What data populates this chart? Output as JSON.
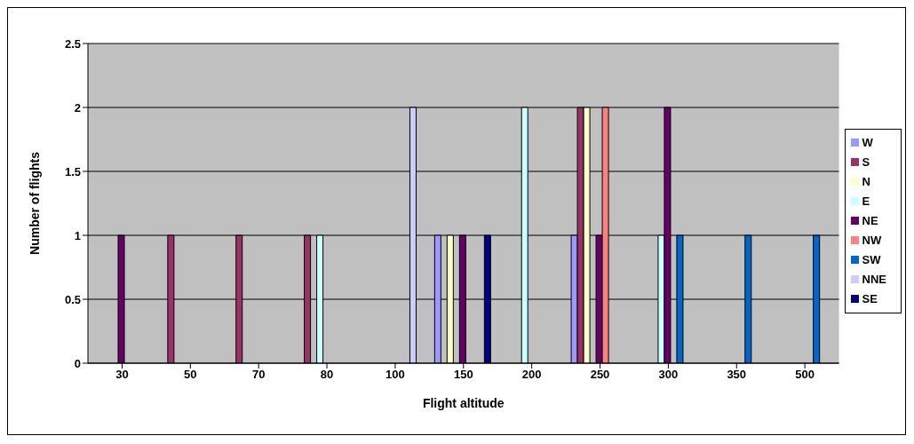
{
  "chart_data": {
    "type": "bar",
    "xlabel": "Flight altitude",
    "ylabel": "Number of flights",
    "categories": [
      "30",
      "50",
      "70",
      "80",
      "100",
      "150",
      "200",
      "250",
      "300",
      "350",
      "500"
    ],
    "series": [
      {
        "name": "W",
        "color": "#9999ff",
        "values": [
          0,
          0,
          0,
          0,
          0,
          1,
          0,
          1,
          0,
          0,
          0
        ]
      },
      {
        "name": "S",
        "color": "#993366",
        "values": [
          0,
          1,
          1,
          1,
          0,
          0,
          0,
          2,
          0,
          0,
          0
        ]
      },
      {
        "name": "N",
        "color": "#ffffcc",
        "values": [
          0,
          0,
          0,
          0,
          0,
          1,
          0,
          2,
          0,
          0,
          0
        ]
      },
      {
        "name": "E",
        "color": "#ccffff",
        "values": [
          0,
          0,
          0,
          1,
          0,
          0,
          2,
          0,
          1,
          0,
          0
        ]
      },
      {
        "name": "NE",
        "color": "#660066",
        "values": [
          1,
          0,
          0,
          0,
          0,
          1,
          0,
          1,
          2,
          0,
          0
        ]
      },
      {
        "name": "NW",
        "color": "#ff8080",
        "values": [
          0,
          0,
          0,
          0,
          0,
          0,
          0,
          2,
          0,
          0,
          0
        ]
      },
      {
        "name": "SW",
        "color": "#0066cc",
        "values": [
          0,
          0,
          0,
          0,
          0,
          0,
          0,
          0,
          1,
          1,
          1
        ]
      },
      {
        "name": "NNE",
        "color": "#ccccff",
        "values": [
          0,
          0,
          0,
          0,
          2,
          0,
          0,
          0,
          0,
          0,
          0
        ]
      },
      {
        "name": "SE",
        "color": "#000080",
        "values": [
          0,
          0,
          0,
          0,
          0,
          1,
          0,
          0,
          0,
          0,
          0
        ]
      }
    ],
    "ylim": [
      0,
      2.5
    ],
    "yticks": [
      0,
      0.5,
      1,
      1.5,
      2,
      2.5
    ],
    "grid": "y",
    "legend": "right"
  }
}
